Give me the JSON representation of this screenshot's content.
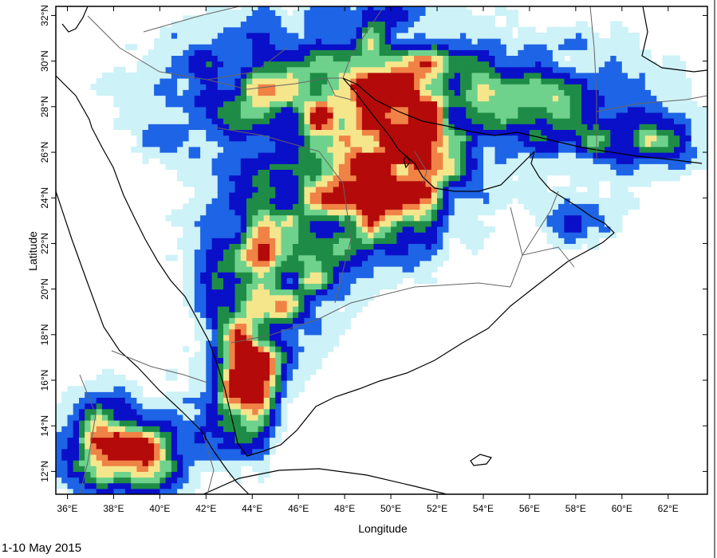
{
  "map": {
    "x_label": "Longitude",
    "y_label": "Latitude",
    "period_label": "1-10 May 2015",
    "lon_ticks": [
      "36°E",
      "38°E",
      "40°E",
      "42°E",
      "44°E",
      "46°E",
      "48°E",
      "50°E",
      "52°E",
      "54°E",
      "56°E",
      "58°E",
      "60°E",
      "62°E"
    ],
    "lat_ticks": [
      "12°N",
      "14°N",
      "16°N",
      "18°N",
      "20°N",
      "22°N",
      "24°N",
      "26°N",
      "28°N",
      "30°N",
      "32°N"
    ],
    "lon_range": [
      35.5,
      63.7
    ],
    "lat_range": [
      11.0,
      32.4
    ],
    "colors": {
      "level1": "#cdf2f7",
      "level2": "#1e64e6",
      "level3": "#0a0fc8",
      "level4": "#1e8c46",
      "level5": "#6ed28c",
      "level6": "#f5e68c",
      "level7": "#f08246",
      "level8": "#b40a0a",
      "coastline": "#000000",
      "border": "#646464"
    }
  }
}
